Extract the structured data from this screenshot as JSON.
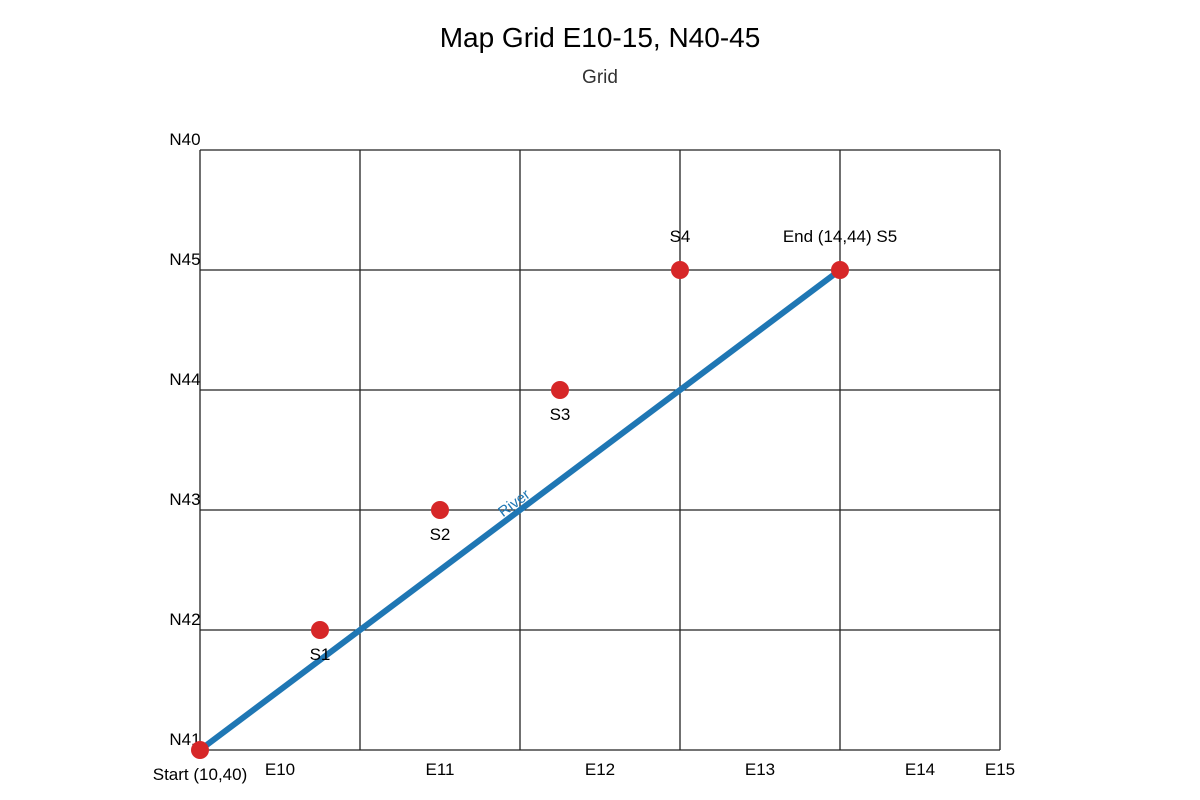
{
  "page": {
    "title": "Map Grid E10-15, N40-45",
    "subtitle": "Grid"
  },
  "chart_data": {
    "type": "scatter",
    "title": "Map Grid E10-15, N40-45",
    "subtitle": "Grid",
    "x_tick_labels": [
      "E10",
      "E11",
      "E12",
      "E13",
      "E14",
      "E15"
    ],
    "y_tick_labels": [
      "N40",
      "N45",
      "N44",
      "N43",
      "N42",
      "N41"
    ],
    "grid": true,
    "river": {
      "name": "River",
      "color": "#1f77b4",
      "from": [
        10,
        40
      ],
      "to": [
        14,
        44
      ]
    },
    "points": [
      {
        "label": "Start (10,40)",
        "x": 10,
        "y": 40,
        "label_pos": "below"
      },
      {
        "label": "S1",
        "x": 10.75,
        "y": 41,
        "label_pos": "below"
      },
      {
        "label": "S2",
        "x": 11.5,
        "y": 42,
        "label_pos": "below"
      },
      {
        "label": "S3",
        "x": 12.25,
        "y": 43,
        "label_pos": "below"
      },
      {
        "label": "S4",
        "x": 13,
        "y": 44,
        "label_pos": "above"
      },
      {
        "label": "End (14,44) S5",
        "x": 14,
        "y": 44,
        "label_pos": "above"
      }
    ],
    "point_color": "#d62728"
  }
}
